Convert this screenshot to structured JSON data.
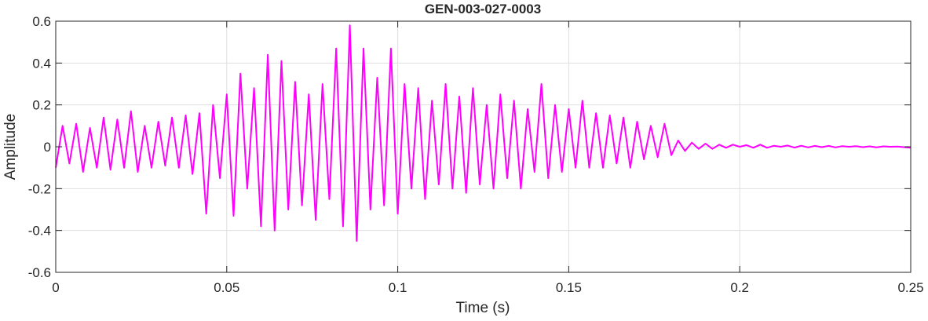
{
  "chart_data": {
    "type": "line",
    "title": "GEN-003-027-0003",
    "xlabel": "Time (s)",
    "ylabel": "Amplitude",
    "xlim": [
      0,
      0.25
    ],
    "ylim": [
      -0.6,
      0.6
    ],
    "xticks": [
      0,
      0.05,
      0.1,
      0.15,
      0.2,
      0.25
    ],
    "xtick_labels": [
      "0",
      "0.05",
      "0.1",
      "0.15",
      "0.2",
      "0.25"
    ],
    "yticks": [
      -0.6,
      -0.4,
      -0.2,
      0,
      0.2,
      0.4,
      0.6
    ],
    "ytick_labels": [
      "-0.6",
      "-0.4",
      "-0.2",
      "0",
      "0.2",
      "0.4",
      "0.6"
    ],
    "grid": true,
    "line_color": "#ff00ff",
    "series": [
      {
        "x_start": 0,
        "sample_interval": 0.002,
        "values": [
          -0.1,
          0.1,
          -0.08,
          0.11,
          -0.12,
          0.09,
          -0.1,
          0.14,
          -0.11,
          0.13,
          -0.1,
          0.17,
          -0.12,
          0.1,
          -0.1,
          0.12,
          -0.09,
          0.14,
          -0.1,
          0.15,
          -0.13,
          0.16,
          -0.32,
          0.2,
          -0.15,
          0.25,
          -0.33,
          0.35,
          -0.2,
          0.28,
          -0.38,
          0.44,
          -0.4,
          0.41,
          -0.3,
          0.31,
          -0.28,
          0.25,
          -0.35,
          0.3,
          -0.25,
          0.47,
          -0.38,
          0.58,
          -0.45,
          0.47,
          -0.3,
          0.33,
          -0.28,
          0.47,
          -0.32,
          0.3,
          -0.2,
          0.28,
          -0.25,
          0.22,
          -0.18,
          0.3,
          -0.2,
          0.24,
          -0.22,
          0.28,
          -0.18,
          0.2,
          -0.2,
          0.25,
          -0.15,
          0.22,
          -0.2,
          0.18,
          -0.12,
          0.3,
          -0.15,
          0.2,
          -0.12,
          0.18,
          -0.1,
          0.22,
          -0.1,
          0.16,
          -0.1,
          0.15,
          -0.08,
          0.14,
          -0.1,
          0.12,
          -0.06,
          0.1,
          -0.05,
          0.11,
          -0.04,
          0.03,
          -0.02,
          0.02,
          -0.01,
          0.015,
          -0.01,
          0.01,
          -0.005,
          0.01,
          0,
          0.008,
          -0.005,
          0.01,
          -0.005,
          0.005,
          0,
          0.006,
          -0.004,
          0.005,
          -0.003,
          0.004,
          -0.002,
          0.004,
          -0.003,
          0.003,
          0,
          0.003,
          -0.002,
          0.002,
          -0.003,
          0.002,
          0,
          0.001,
          -0.002,
          -0.005
        ]
      }
    ]
  }
}
